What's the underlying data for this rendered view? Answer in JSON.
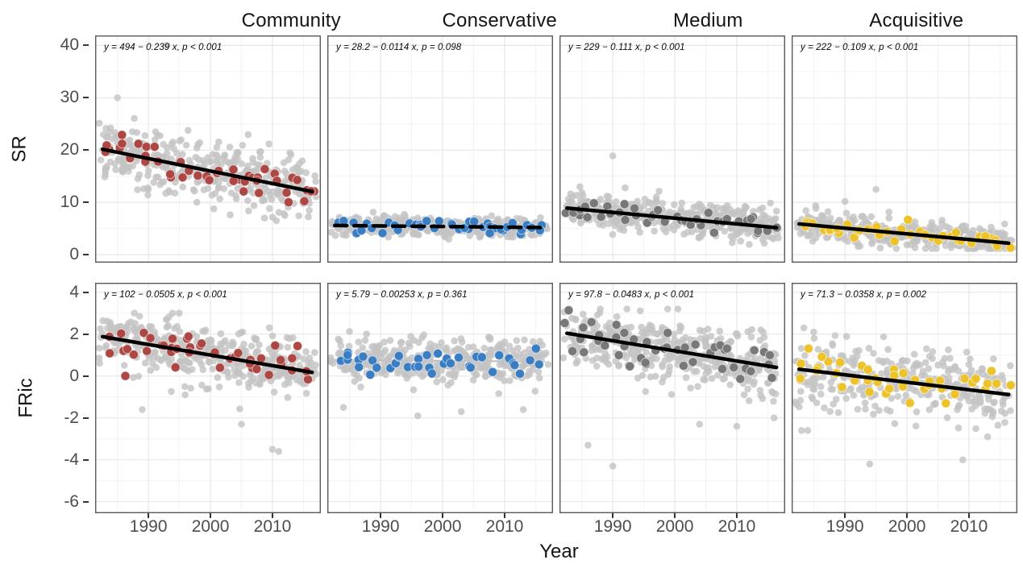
{
  "figure": {
    "col_titles": [
      "Community",
      "Conservative",
      "Medium",
      "Acquisitive"
    ],
    "row_labels": [
      "SR",
      "FRic"
    ]
  },
  "style": {
    "bg_point_color": "#c3c3c3",
    "bg_point_opacity": 0.8,
    "bg_point_radius": 4.3,
    "highlight_point_radius": 5.6,
    "grid_major_color": "#e7e7e7",
    "grid_minor_color": "#f3f3f3",
    "panel_border_color": "#595959",
    "tick_color": "#333333",
    "axis_text_color": "#4d4d4d"
  },
  "chart_data": {
    "type": "scatter",
    "xlabel": "Year",
    "x_domain": [
      1981.4,
      2017.8
    ],
    "x_data_range": [
      1983,
      2016
    ],
    "x_ticks": [
      1990,
      2000,
      2010
    ],
    "x_minor_ticks": [
      1985,
      1995,
      2005,
      2015
    ],
    "facet_rows": [
      {
        "label": "SR",
        "ticks": [
          0,
          10,
          20,
          30,
          40
        ],
        "minor_ticks": [
          5,
          15,
          25,
          35
        ],
        "domain": [
          -1.5,
          41.9
        ]
      },
      {
        "label": "FRic",
        "ticks": [
          -6,
          -4,
          -2,
          0,
          2,
          4
        ],
        "minor_ticks": [
          -5,
          -3,
          -1,
          1,
          3
        ],
        "domain": [
          -6.55,
          4.45
        ]
      }
    ],
    "facet_cols": [
      "Community",
      "Conservative",
      "Medium",
      "Acquisitive"
    ],
    "panels": [
      {
        "row": "SR",
        "col": "Community",
        "equation": "y = 494 − 0.239 x, p < 0.001",
        "intercept": 494,
        "slope": -0.239,
        "p": "< 0.001",
        "significant": true,
        "trend": {
          "style": "solid",
          "color": "#000000",
          "width": 4.5,
          "on_top": true
        },
        "highlight_color": "#ad4743",
        "gen": {
          "seed": 11,
          "mean_start": 20.1,
          "mean_end": 12.2,
          "sd": 3.1,
          "n_min": 9,
          "n_max": 13,
          "clamp": [
            6.5,
            30.5
          ],
          "hl_per_year": 1.25,
          "outliers": [
            [
              1993,
              40
            ],
            [
              1985,
              30
            ],
            [
              2010,
              7.2
            ],
            [
              2012,
              7.5
            ]
          ]
        }
      },
      {
        "row": "SR",
        "col": "Conservative",
        "equation": "y = 28.2 − 0.0114 x, p = 0.098",
        "intercept": 28.2,
        "slope": -0.0114,
        "p": "= 0.098",
        "significant": false,
        "trend": {
          "style": "dashed",
          "color": "#000000",
          "width": 4.5,
          "on_top": true
        },
        "highlight_color": "#3a7dc2",
        "gen": {
          "seed": 22,
          "mean_start": 5.6,
          "mean_end": 5.25,
          "sd": 0.95,
          "n_min": 9,
          "n_max": 13,
          "clamp": [
            3.4,
            8.3
          ],
          "hl_per_year": 1.2,
          "outliers": [
            [
              2001,
              3.0
            ]
          ]
        }
      },
      {
        "row": "SR",
        "col": "Medium",
        "equation": "y = 229 − 0.111 x, p < 0.001",
        "intercept": 229,
        "slope": -0.111,
        "p": "< 0.001",
        "significant": true,
        "trend": {
          "style": "solid",
          "color": "#000000",
          "width": 4.5,
          "on_top": true
        },
        "highlight_color": "#787878",
        "gen": {
          "seed": 33,
          "mean_start": 8.9,
          "mean_end": 5.2,
          "sd": 1.6,
          "n_min": 10,
          "n_max": 14,
          "clamp": [
            2.2,
            13
          ],
          "hl_per_year": 1.25,
          "outliers": [
            [
              1990,
              18.9
            ],
            [
              2012,
              2.0
            ],
            [
              1992,
              12.8
            ]
          ]
        }
      },
      {
        "row": "SR",
        "col": "Acquisitive",
        "equation": "y = 222 − 0.109 x, p < 0.001",
        "intercept": 222,
        "slope": -0.109,
        "p": "< 0.001",
        "significant": true,
        "trend": {
          "style": "solid",
          "color": "#000000",
          "width": 4.5,
          "on_top": true
        },
        "highlight_color": "#ecc32b",
        "gen": {
          "seed": 44,
          "mean_start": 5.9,
          "mean_end": 2.4,
          "sd": 1.35,
          "n_min": 8,
          "n_max": 12,
          "clamp": [
            1.2,
            9.8
          ],
          "hl_per_year": 1.2,
          "outliers": [
            [
              1995,
              12.5
            ],
            [
              1990,
              10.2
            ]
          ]
        }
      },
      {
        "row": "FRic",
        "col": "Community",
        "equation": "y = 102 − 0.0505 x, p < 0.001",
        "intercept": 102,
        "slope": -0.0505,
        "p": "< 0.001",
        "significant": true,
        "trend": {
          "style": "solid",
          "color": "#000000",
          "width": 4.5,
          "on_top": true
        },
        "highlight_color": "#ad4743",
        "gen": {
          "seed": 55,
          "mean_start": 1.86,
          "mean_end": 0.19,
          "sd": 0.75,
          "n_min": 9,
          "n_max": 13,
          "clamp": [
            -2.6,
            3.0
          ],
          "hl_per_year": 1.25,
          "outliers": [
            [
              2010,
              -3.5
            ],
            [
              2011,
              -3.6
            ],
            [
              2005,
              -2.3
            ],
            [
              1989,
              -1.6
            ]
          ]
        }
      },
      {
        "row": "FRic",
        "col": "Conservative",
        "equation": "y = 5.79 − 0.00253 x, p = 0.361",
        "intercept": 5.79,
        "slope": -0.00253,
        "p": "= 0.361",
        "significant": false,
        "trend": {
          "style": "solid",
          "color": "#bcbcbc",
          "width": 2,
          "on_top": false
        },
        "highlight_color": "#3a7dc2",
        "gen": {
          "seed": 66,
          "mean_start": 0.77,
          "mean_end": 0.69,
          "sd": 0.52,
          "n_min": 9,
          "n_max": 13,
          "clamp": [
            -1.2,
            2.2
          ],
          "hl_per_year": 1.2,
          "outliers": [
            [
              1996,
              -1.9
            ],
            [
              1984,
              -1.5
            ],
            [
              2013,
              -1.6
            ],
            [
              2003,
              -1.7
            ]
          ]
        }
      },
      {
        "row": "FRic",
        "col": "Medium",
        "equation": "y = 97.8 − 0.0483 x, p < 0.001",
        "intercept": 97.8,
        "slope": -0.0483,
        "p": "< 0.001",
        "significant": true,
        "trend": {
          "style": "solid",
          "color": "#000000",
          "width": 4.5,
          "on_top": true
        },
        "highlight_color": "#787878",
        "gen": {
          "seed": 77,
          "mean_start": 2.02,
          "mean_end": 0.43,
          "sd": 0.75,
          "n_min": 10,
          "n_max": 14,
          "clamp": [
            -2.2,
            3.2
          ],
          "hl_per_year": 1.3,
          "outliers": [
            [
              1986,
              -3.3
            ],
            [
              2010,
              -2.4
            ],
            [
              2016,
              -2.0
            ],
            [
              2004,
              -2.3
            ],
            [
              1990,
              -4.3
            ]
          ]
        }
      },
      {
        "row": "FRic",
        "col": "Acquisitive",
        "equation": "y = 71.3 − 0.0358 x, p = 0.002",
        "intercept": 71.3,
        "slope": -0.0358,
        "p": "= 0.002",
        "significant": true,
        "trend": {
          "style": "solid",
          "color": "#000000",
          "width": 4.5,
          "on_top": true
        },
        "highlight_color": "#ecc32b",
        "gen": {
          "seed": 88,
          "mean_start": 0.31,
          "mean_end": -0.87,
          "sd": 0.85,
          "n_min": 8,
          "n_max": 12,
          "clamp": [
            -3.2,
            2.3
          ],
          "hl_per_year": 1.2,
          "outliers": [
            [
              1983,
              -2.6
            ],
            [
              1984,
              -2.6
            ],
            [
              1994,
              -4.2
            ],
            [
              2009,
              -4.0
            ],
            [
              2013,
              -2.9
            ]
          ]
        }
      }
    ]
  }
}
